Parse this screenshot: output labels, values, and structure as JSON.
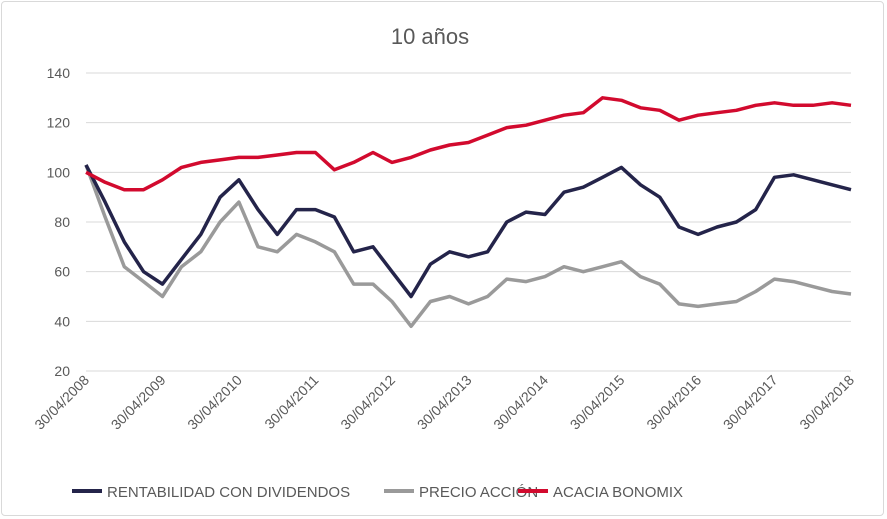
{
  "chart_data": {
    "type": "line",
    "title": "10 años",
    "xlabel": "",
    "ylabel": "",
    "ylim": [
      20,
      140
    ],
    "yticks": [
      20,
      40,
      60,
      80,
      100,
      120,
      140
    ],
    "xticks": [
      "30/04/2008",
      "30/04/2009",
      "30/04/2010",
      "30/04/2011",
      "30/04/2012",
      "30/04/2013",
      "30/04/2014",
      "30/04/2015",
      "30/04/2016",
      "30/04/2017",
      "30/04/2018"
    ],
    "grid": true,
    "legend_position": "bottom",
    "x": [
      "30/04/2008",
      "30/07/2008",
      "30/10/2008",
      "30/01/2009",
      "30/04/2009",
      "30/07/2009",
      "30/10/2009",
      "30/01/2010",
      "30/04/2010",
      "30/07/2010",
      "30/10/2010",
      "30/01/2011",
      "30/04/2011",
      "30/07/2011",
      "30/10/2011",
      "30/01/2012",
      "30/04/2012",
      "30/07/2012",
      "30/10/2012",
      "30/01/2013",
      "30/04/2013",
      "30/07/2013",
      "30/10/2013",
      "30/01/2014",
      "30/04/2014",
      "30/07/2014",
      "30/10/2014",
      "30/01/2015",
      "30/04/2015",
      "30/07/2015",
      "30/10/2015",
      "30/01/2016",
      "30/04/2016",
      "30/07/2016",
      "30/10/2016",
      "30/01/2017",
      "30/04/2017",
      "30/07/2017",
      "30/10/2017",
      "30/01/2018",
      "30/04/2018"
    ],
    "series": [
      {
        "name": "RENTABILIDAD CON DIVIDENDOS",
        "color": "#24244a",
        "values": [
          103,
          88,
          72,
          60,
          55,
          65,
          75,
          90,
          97,
          85,
          75,
          85,
          85,
          82,
          68,
          70,
          60,
          50,
          63,
          68,
          66,
          68,
          80,
          84,
          83,
          92,
          94,
          98,
          102,
          95,
          90,
          78,
          75,
          78,
          80,
          85,
          98,
          99,
          97,
          95,
          93
        ]
      },
      {
        "name": "PRECIO ACCIÓN",
        "color": "#9a9a9a",
        "values": [
          103,
          82,
          62,
          56,
          50,
          62,
          68,
          80,
          88,
          70,
          68,
          75,
          72,
          68,
          55,
          55,
          48,
          38,
          48,
          50,
          47,
          50,
          57,
          56,
          58,
          62,
          60,
          62,
          64,
          58,
          55,
          47,
          46,
          47,
          48,
          52,
          57,
          56,
          54,
          52,
          51
        ]
      },
      {
        "name": "ACACIA BONOMIX",
        "color": "#d20a2e",
        "values": [
          100,
          96,
          93,
          93,
          97,
          102,
          104,
          105,
          106,
          106,
          107,
          108,
          108,
          101,
          104,
          108,
          104,
          106,
          109,
          111,
          112,
          115,
          118,
          119,
          121,
          123,
          124,
          130,
          129,
          126,
          125,
          121,
          123,
          124,
          125,
          127,
          128,
          127,
          127,
          128,
          127
        ]
      }
    ]
  }
}
